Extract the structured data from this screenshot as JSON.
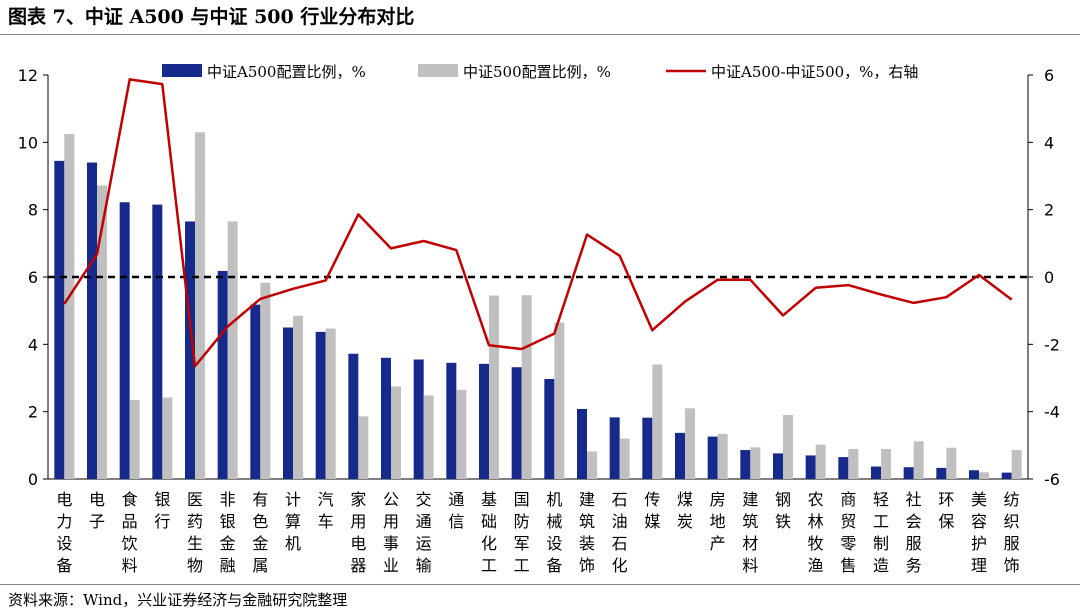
{
  "header": {
    "title": "图表 7、中证 A500 与中证 500 行业分布对比"
  },
  "footer": {
    "source": "资料来源：Wind，兴业证券经济与金融研究院整理"
  },
  "colors": {
    "a500": "#162a8c",
    "zz500": "#c0c0c0",
    "diff": "#c00000",
    "zero_line": "#000000"
  },
  "chart_data": {
    "type": "bar",
    "categories": [
      "电力设备",
      "电子",
      "食品饮料",
      "银行",
      "医药生物",
      "非银金融",
      "有色金属",
      "计算机",
      "汽车",
      "家用电器",
      "公用事业",
      "交通运输",
      "通信",
      "基础化工",
      "国防军工",
      "机械设备",
      "建筑装饰",
      "石油石化",
      "传媒",
      "煤炭",
      "房地产",
      "建筑材料",
      "钢铁",
      "农林牧渔",
      "商贸零售",
      "轻工制造",
      "社会服务",
      "环保",
      "美容护理",
      "纺织服饰"
    ],
    "series": [
      {
        "name": "中证A500配置比例，%",
        "axis": "left",
        "type": "bar",
        "values": [
          9.45,
          9.4,
          8.22,
          8.15,
          7.65,
          6.18,
          5.18,
          4.5,
          4.37,
          3.72,
          3.6,
          3.55,
          3.45,
          3.42,
          3.32,
          2.97,
          2.08,
          1.83,
          1.82,
          1.37,
          1.26,
          0.86,
          0.76,
          0.7,
          0.65,
          0.37,
          0.35,
          0.33,
          0.26,
          0.19
        ]
      },
      {
        "name": "中证500配置比例，%",
        "axis": "left",
        "type": "bar",
        "values": [
          10.25,
          8.72,
          2.35,
          2.42,
          10.3,
          7.65,
          5.83,
          4.85,
          4.47,
          1.86,
          2.75,
          2.48,
          2.65,
          5.45,
          5.46,
          4.65,
          0.82,
          1.2,
          3.4,
          2.1,
          1.34,
          0.94,
          1.9,
          1.02,
          0.89,
          0.89,
          1.12,
          0.93,
          0.2,
          0.86
        ]
      },
      {
        "name": "中证A500-中证500，%，右轴",
        "axis": "right",
        "type": "line",
        "values": [
          -0.8,
          0.68,
          5.87,
          5.73,
          -2.65,
          -1.47,
          -0.65,
          -0.35,
          -0.1,
          1.86,
          0.85,
          1.07,
          0.8,
          -2.03,
          -2.14,
          -1.68,
          1.26,
          0.63,
          -1.58,
          -0.73,
          -0.08,
          -0.08,
          -1.14,
          -0.32,
          -0.24,
          -0.52,
          -0.77,
          -0.6,
          0.06,
          -0.67
        ]
      }
    ],
    "yaxis_left": {
      "min": 0,
      "max": 12,
      "ticks": [
        "0",
        "2",
        "4",
        "6",
        "8",
        "10",
        "12"
      ],
      "tick_values": [
        0,
        2,
        4,
        6,
        8,
        10,
        12
      ]
    },
    "yaxis_right": {
      "min": -6,
      "max": 6,
      "ticks": [
        "-6",
        "-4",
        "-2",
        "0",
        "2",
        "4",
        "6"
      ],
      "tick_values": [
        -6,
        -4,
        -2,
        0,
        2,
        4,
        6
      ]
    },
    "reference_line": {
      "axis": "right",
      "value": 0,
      "style": "dashed"
    },
    "legend_position": "top",
    "grid": false
  }
}
